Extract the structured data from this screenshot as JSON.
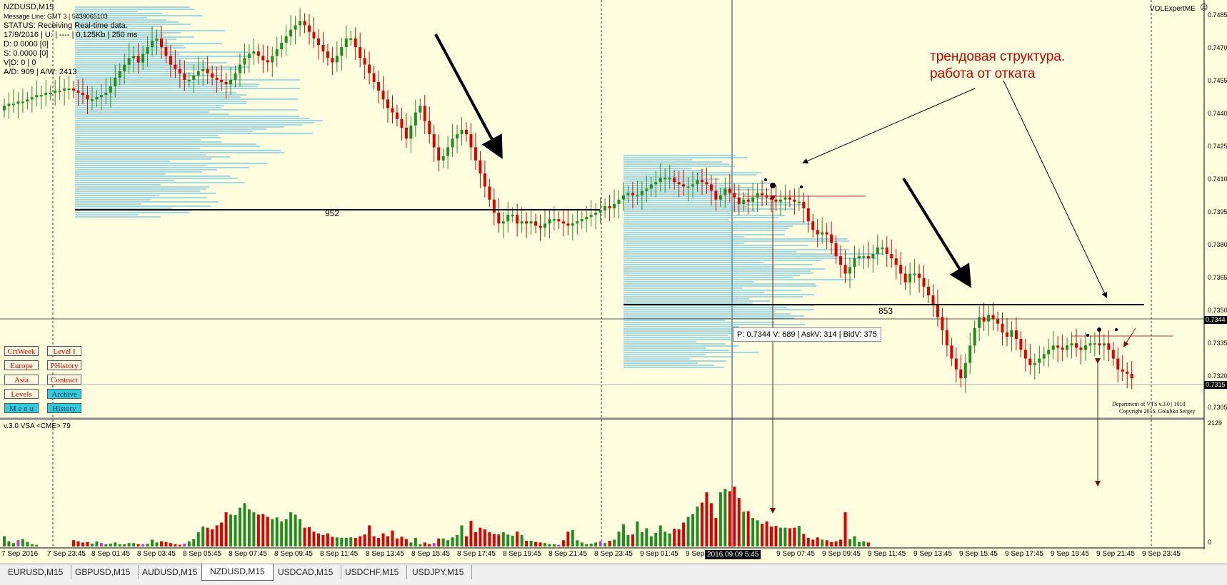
{
  "info_panel": {
    "symbol": "NZDUSD,M15",
    "message_line": "Message Line: GMT 3 | 5439065103",
    "status": "STATUS:  Receiving Real-time data.",
    "date_line": "17/9/2016 | U: | ---- | 0.125Kb | 250 ms",
    "d_line": "D: 0.0000  [0]",
    "s_line": "S: 0.0000  [0]",
    "vd_line": "V|D: 0 | 0",
    "ad_line": "A/D: 909 | A/W: 2413"
  },
  "indicator_title": "VOLExpertME",
  "volume_panel_title": "v.3.0 VSA <CME> 79",
  "volume_axis_max": "2129",
  "volume_axis_min": "0",
  "buttons": [
    {
      "label": "CrtWeek",
      "active": false
    },
    {
      "label": "Level I",
      "active": false
    },
    {
      "label": "Europe",
      "active": false
    },
    {
      "label": "PHistory",
      "active": false
    },
    {
      "label": "Asia",
      "active": false
    },
    {
      "label": "Contract",
      "active": false
    },
    {
      "label": "Levels",
      "active": false
    },
    {
      "label": "Archive",
      "active": true
    },
    {
      "label": "M e n u",
      "active": true
    },
    {
      "label": "History",
      "active": true
    }
  ],
  "annotation": {
    "line1": "трендовая структура.",
    "line2": "работа от отката"
  },
  "poc_labels": [
    "952",
    "853"
  ],
  "tooltip": "P: 0.7344   V: 689 | AskV: 314 | BidV: 375",
  "crosshair_date": "2016.09.09 5:45",
  "copyright": {
    "line1": "Department of VTS  v.3.0 | 1010",
    "line2": "Copyright 2015, Golubko Sergey"
  },
  "price_axis": [
    "0.7485",
    "0.7470",
    "0.7455",
    "0.7440",
    "0.7425",
    "0.7410",
    "0.7395",
    "0.7380",
    "0.7365",
    "0.7350",
    "0.7335",
    "0.7320",
    "0.7305"
  ],
  "price_tags": {
    "bid": "0.7344",
    "last": "0.7315"
  },
  "time_axis": [
    "7 Sep 2016",
    "7 Sep 23:45",
    "8 Sep 01:45",
    "8 Sep 03:45",
    "8 Sep 05:45",
    "8 Sep 07:45",
    "8 Sep 09:45",
    "8 Sep 11:45",
    "8 Sep 13:45",
    "8 Sep 15:45",
    "8 Sep 17:45",
    "8 Sep 19:45",
    "8 Sep 21:45",
    "8 Sep 23:45",
    "9 Sep 01:45",
    "9 Sep",
    "9 Sep 07:45",
    "9 Sep 09:45",
    "9 Sep 11:45",
    "9 Sep 13:45",
    "9 Sep 15:45",
    "9 Sep 17:45",
    "9 Sep 19:45",
    "9 Sep 21:45",
    "9 Sep 23:45"
  ],
  "tabs": [
    {
      "label": "EURUSD,M15",
      "active": false
    },
    {
      "label": "GBPUSD,M15",
      "active": false
    },
    {
      "label": "AUDUSD,M15",
      "active": false
    },
    {
      "label": "NZDUSD,M15",
      "active": true
    },
    {
      "label": "USDCAD,M15",
      "active": false
    },
    {
      "label": "USDCHF,M15",
      "active": false
    },
    {
      "label": "USDJPY,M15",
      "active": false
    }
  ],
  "colors": {
    "background": "#ffffe0",
    "bull": "#228b22",
    "bear": "#dd0000",
    "profile": "#45b0e0",
    "button_active": "#33ccdd"
  },
  "price_series": [
    0.7443,
    0.7444,
    0.7444,
    0.7445,
    0.7445,
    0.7446,
    0.7447,
    0.7448,
    0.7448,
    0.7449,
    0.7449,
    0.745,
    0.745,
    0.7451,
    0.7451,
    0.745,
    0.7449,
    0.7448,
    0.7446,
    0.7446,
    0.7447,
    0.7448,
    0.7449,
    0.7452,
    0.7456,
    0.7459,
    0.7462,
    0.7465,
    0.7466,
    0.7463,
    0.7467,
    0.747,
    0.7473,
    0.7474,
    0.747,
    0.7466,
    0.7462,
    0.746,
    0.7458,
    0.7455,
    0.7455,
    0.7457,
    0.7459,
    0.746,
    0.7458,
    0.7456,
    0.7455,
    0.7454,
    0.7453,
    0.7455,
    0.7458,
    0.7462,
    0.7465,
    0.7467,
    0.7468,
    0.7466,
    0.7464,
    0.7463,
    0.7466,
    0.7469,
    0.7472,
    0.7475,
    0.7478,
    0.748,
    0.7482,
    0.748,
    0.7477,
    0.7474,
    0.7471,
    0.7468,
    0.7465,
    0.7463,
    0.7466,
    0.747,
    0.7474,
    0.7474,
    0.747,
    0.7465,
    0.7462,
    0.7458,
    0.7454,
    0.745,
    0.7446,
    0.7442,
    0.744,
    0.7437,
    0.7433,
    0.7428,
    0.7434,
    0.744,
    0.7443,
    0.7436,
    0.743,
    0.7424,
    0.7418,
    0.742,
    0.7424,
    0.7428,
    0.743,
    0.7432,
    0.743,
    0.7424,
    0.7418,
    0.7412,
    0.7406,
    0.74,
    0.7394,
    0.7389,
    0.739,
    0.7393,
    0.7393,
    0.7389,
    0.739,
    0.7389,
    0.739,
    0.7388,
    0.7387,
    0.7389,
    0.7391,
    0.7391,
    0.739,
    0.7389,
    0.7388,
    0.7389,
    0.739,
    0.7391,
    0.7392,
    0.7393,
    0.7394,
    0.7395,
    0.7397,
    0.7396,
    0.7398,
    0.74,
    0.7402,
    0.7403,
    0.7402,
    0.7402,
    0.7404,
    0.7405,
    0.7407,
    0.7408,
    0.741,
    0.741,
    0.741,
    0.7408,
    0.7407,
    0.7406,
    0.7406,
    0.7407,
    0.7409,
    0.7408,
    0.7407,
    0.7404,
    0.74,
    0.7402,
    0.7405,
    0.7403,
    0.7401,
    0.7398,
    0.74,
    0.7399,
    0.7401,
    0.7403,
    0.7402,
    0.7401,
    0.74,
    0.7399,
    0.74,
    0.7401,
    0.74,
    0.7399,
    0.7399,
    0.7396,
    0.739,
    0.7386,
    0.7384,
    0.7385,
    0.7384,
    0.738,
    0.7374,
    0.737,
    0.7366,
    0.7369,
    0.7373,
    0.7374,
    0.7374,
    0.7373,
    0.7375,
    0.7378,
    0.7378,
    0.7375,
    0.7373,
    0.737,
    0.7366,
    0.7362,
    0.7366,
    0.7366,
    0.7364,
    0.736,
    0.7356,
    0.7352,
    0.7346,
    0.734,
    0.7333,
    0.7327,
    0.7322,
    0.7318,
    0.7325,
    0.7333,
    0.7341,
    0.7346,
    0.7344,
    0.7347,
    0.7345,
    0.7343,
    0.7339,
    0.7337,
    0.734,
    0.7336,
    0.7331,
    0.7327,
    0.7324,
    0.7325,
    0.7327,
    0.7329,
    0.7331,
    0.7333,
    0.7332,
    0.7331,
    0.7333,
    0.7334,
    0.7332,
    0.7331,
    0.7333,
    0.7334,
    0.7334,
    0.7333,
    0.7334,
    0.7331,
    0.7327,
    0.7322,
    0.7321,
    0.732,
    0.7318
  ],
  "volume_series": [
    180,
    90,
    60,
    110,
    130,
    80,
    40,
    30,
    0,
    0,
    0,
    0,
    0,
    0,
    0,
    110,
    90,
    70,
    80,
    50,
    90,
    60,
    40,
    50,
    70,
    40,
    40,
    60,
    60,
    40,
    40,
    50,
    120,
    70,
    90,
    80,
    60,
    40,
    30,
    50,
    90,
    130,
    250,
    350,
    330,
    300,
    370,
    420,
    600,
    560,
    550,
    680,
    760,
    650,
    600,
    560,
    570,
    520,
    480,
    510,
    440,
    480,
    600,
    560,
    480,
    330,
    340,
    260,
    230,
    200,
    230,
    170,
    160,
    150,
    150,
    160,
    150,
    180,
    210,
    370,
    180,
    150,
    230,
    180,
    280,
    140,
    170,
    130,
    70,
    150,
    40,
    70,
    40,
    60,
    140,
    140,
    110,
    160,
    200,
    370,
    180,
    450,
    250,
    330,
    300,
    250,
    220,
    210,
    250,
    210,
    190,
    260,
    200,
    100,
    100,
    80,
    70,
    60,
    40,
    40,
    30,
    110,
    260,
    290,
    110,
    70,
    40,
    50,
    70,
    90,
    60,
    100,
    120,
    260,
    390,
    200,
    210,
    440,
    250,
    320,
    180,
    240,
    370,
    260,
    230,
    310,
    300,
    420,
    520,
    570,
    700,
    770,
    950,
    760,
    500,
    950,
    1010,
    970,
    1050,
    850,
    610,
    620,
    500,
    460,
    400,
    440,
    350,
    360,
    330,
    330,
    320,
    330,
    360,
    220,
    150,
    120,
    160,
    120,
    110,
    80,
    90,
    120,
    600,
    130,
    180,
    80,
    90,
    70
  ]
}
